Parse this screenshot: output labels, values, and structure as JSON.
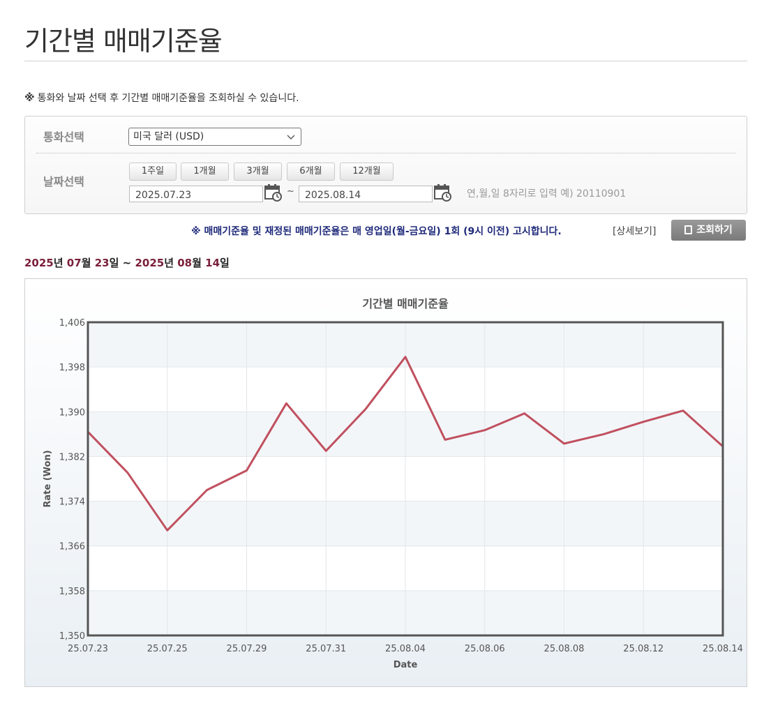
{
  "page": {
    "title": "기간별 매매기준율",
    "notice_mark": "※",
    "notice": "통화와 날짜 선택 후 기간별 매매기준율을 조회하실 수 있습니다."
  },
  "filter": {
    "currency_label": "통화선택",
    "currency_value": "미국 달러 (USD)",
    "date_label": "날짜선택",
    "period_buttons": [
      "1주일",
      "1개월",
      "3개월",
      "6개월",
      "12개월"
    ],
    "start_date": "2025.07.23",
    "end_date": "2025.08.14",
    "separator": "~",
    "hint": "연,월,일 8자리로 입력 예) 20110901"
  },
  "announcement": {
    "text": "※ 매매기준율 및 재정된 매매기준율은 매 영업일(월-금요일) 1회 (9시 이전) 고시합니다.",
    "detail_link": "[상세보기]",
    "search_button": "조회하기"
  },
  "range": {
    "start_year": "2025",
    "start_month": "07",
    "start_day": "23",
    "end_year": "2025",
    "end_month": "08",
    "end_day": "14",
    "year_unit": "년",
    "month_unit": "월",
    "day_unit": "일",
    "sep": "~"
  },
  "colors": {
    "line": "#c0505f",
    "range_num": "#7a1f3a",
    "announce": "#1f2a7a"
  },
  "chart_data": {
    "type": "line",
    "title": "기간별 매매기준율",
    "xlabel": "Date",
    "ylabel": "Rate (Won)",
    "ylim": [
      1350,
      1406
    ],
    "yticks": [
      1350,
      1358,
      1366,
      1374,
      1382,
      1390,
      1398,
      1406
    ],
    "ytick_labels": [
      "1,350",
      "1,358",
      "1,366",
      "1,374",
      "1,382",
      "1,390",
      "1,398",
      "1,406"
    ],
    "xtick_labels": [
      "25.07.23",
      "25.07.25",
      "25.07.29",
      "25.07.31",
      "25.08.04",
      "25.08.06",
      "25.08.08",
      "25.08.12",
      "25.08.14"
    ],
    "grid": true,
    "series": [
      {
        "values": [
          1386.4,
          1379.1,
          1368.8,
          1376.0,
          1379.5,
          1391.5,
          1383.0,
          1390.5,
          1399.8,
          1385.0,
          1386.7,
          1389.7,
          1384.3,
          1386.0,
          1388.2,
          1390.2,
          1383.8
        ]
      }
    ]
  }
}
